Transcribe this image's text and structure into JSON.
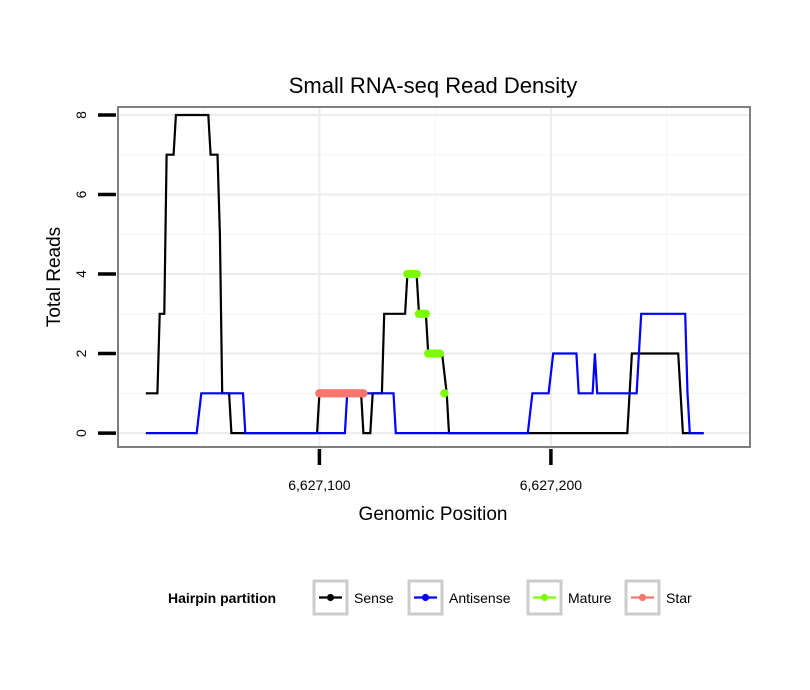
{
  "chart_data": {
    "type": "line",
    "title": "Small RNA-seq Read Density",
    "xlabel": "Genomic Position",
    "ylabel": "Total Reads",
    "xlim": [
      6627013,
      6627286
    ],
    "ylim": [
      -0.35,
      8.2
    ],
    "xticks": [
      6627100,
      6627200
    ],
    "xtick_labels": [
      "6,627,100",
      "6,627,200"
    ],
    "yticks": [
      0,
      2,
      4,
      6,
      8
    ],
    "ytick_labels": [
      "0",
      "2",
      "4",
      "6",
      "8"
    ],
    "grid": true,
    "legend_position": "bottom",
    "legend_title": "Hairpin partition",
    "series": [
      {
        "name": "Sense",
        "color": "#000000",
        "style": "line",
        "points": [
          [
            6627025,
            1
          ],
          [
            6627030,
            1
          ],
          [
            6627031,
            3
          ],
          [
            6627033,
            3
          ],
          [
            6627034,
            7
          ],
          [
            6627037,
            7
          ],
          [
            6627038,
            8
          ],
          [
            6627052,
            8
          ],
          [
            6627053,
            7
          ],
          [
            6627056,
            7
          ],
          [
            6627057,
            5
          ],
          [
            6627058,
            1
          ],
          [
            6627061,
            1
          ],
          [
            6627062,
            0
          ],
          [
            6627099,
            0
          ],
          [
            6627100,
            1
          ],
          [
            6627118,
            1
          ],
          [
            6627119,
            0
          ],
          [
            6627122,
            0
          ],
          [
            6627123,
            1
          ],
          [
            6627127,
            1
          ],
          [
            6627128,
            3
          ],
          [
            6627137,
            3
          ],
          [
            6627138,
            4
          ],
          [
            6627142,
            4
          ],
          [
            6627143,
            3
          ],
          [
            6627146,
            3
          ],
          [
            6627147,
            2
          ],
          [
            6627153,
            2
          ],
          [
            6627155,
            1
          ],
          [
            6627156,
            0
          ],
          [
            6627233,
            0
          ],
          [
            6627235,
            2
          ],
          [
            6627255,
            2
          ],
          [
            6627257,
            0
          ],
          [
            6627266,
            0
          ]
        ]
      },
      {
        "name": "Antisense",
        "color": "#0000ff",
        "style": "line",
        "points": [
          [
            6627025,
            0
          ],
          [
            6627047,
            0
          ],
          [
            6627049,
            1
          ],
          [
            6627067,
            1
          ],
          [
            6627068,
            0
          ],
          [
            6627111,
            0
          ],
          [
            6627112,
            1
          ],
          [
            6627132,
            1
          ],
          [
            6627133,
            0
          ],
          [
            6627190,
            0
          ],
          [
            6627192,
            1
          ],
          [
            6627199,
            1
          ],
          [
            6627201,
            2
          ],
          [
            6627211,
            2
          ],
          [
            6627212,
            1
          ],
          [
            6627218,
            1
          ],
          [
            6627219,
            2
          ],
          [
            6627220,
            1
          ],
          [
            6627237,
            1
          ],
          [
            6627239,
            3
          ],
          [
            6627258,
            3
          ],
          [
            6627259,
            1
          ],
          [
            6627260,
            0
          ],
          [
            6627266,
            0
          ]
        ]
      },
      {
        "name": "Mature",
        "color": "#7cfc00",
        "style": "points",
        "points": [
          [
            6627138,
            4
          ],
          [
            6627139,
            4
          ],
          [
            6627140,
            4
          ],
          [
            6627141,
            4
          ],
          [
            6627142,
            4
          ],
          [
            6627143,
            3
          ],
          [
            6627144,
            3
          ],
          [
            6627145,
            3
          ],
          [
            6627146,
            3
          ],
          [
            6627147,
            2
          ],
          [
            6627148,
            2
          ],
          [
            6627149,
            2
          ],
          [
            6627150,
            2
          ],
          [
            6627151,
            2
          ],
          [
            6627152,
            2
          ],
          [
            6627154,
            1
          ]
        ]
      },
      {
        "name": "Star",
        "color": "#f8766d",
        "style": "points",
        "points": [
          [
            6627100,
            1
          ],
          [
            6627101,
            1
          ],
          [
            6627102,
            1
          ],
          [
            6627103,
            1
          ],
          [
            6627104,
            1
          ],
          [
            6627105,
            1
          ],
          [
            6627106,
            1
          ],
          [
            6627107,
            1
          ],
          [
            6627108,
            1
          ],
          [
            6627109,
            1
          ],
          [
            6627110,
            1
          ],
          [
            6627111,
            1
          ],
          [
            6627112,
            1
          ],
          [
            6627113,
            1
          ],
          [
            6627114,
            1
          ],
          [
            6627115,
            1
          ],
          [
            6627116,
            1
          ],
          [
            6627117,
            1
          ],
          [
            6627118,
            1
          ],
          [
            6627119,
            1
          ]
        ]
      }
    ]
  }
}
